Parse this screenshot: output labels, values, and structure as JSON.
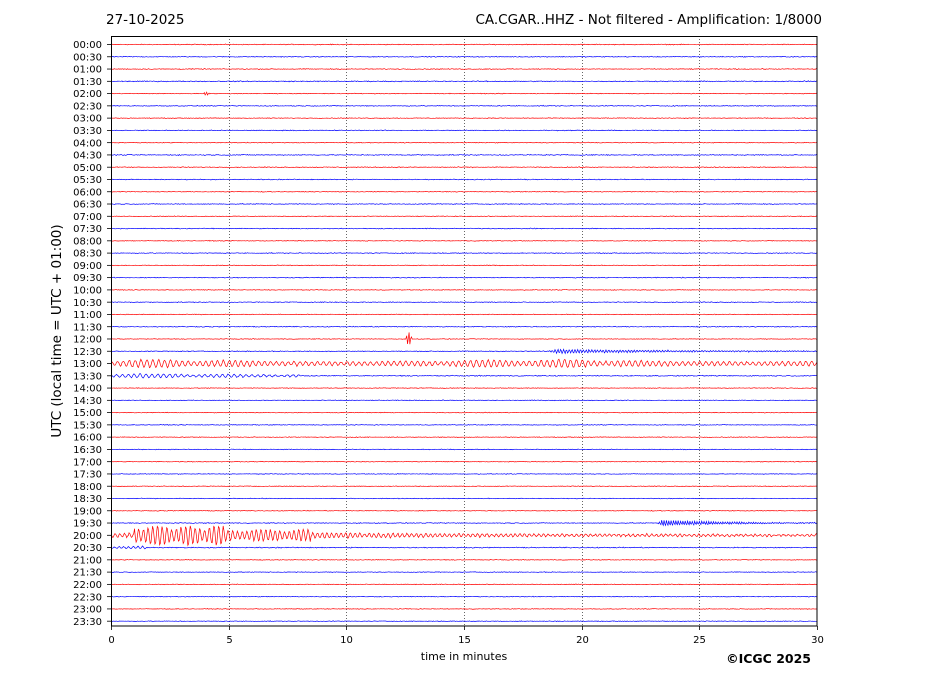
{
  "header": {
    "date": "27-10-2025",
    "title": "CA.CGAR..HHZ - Not filtered - Amplification: 1/8000"
  },
  "footer": {
    "copyright": "©ICGC 2025"
  },
  "chart_data": {
    "type": "line",
    "subtype": "helicorder",
    "title": "CA.CGAR..HHZ - Not filtered - Amplification: 1/8000",
    "xlabel": "time in minutes",
    "ylabel": "UTC (local time = UTC + 01:00)",
    "xlim": [
      0,
      30
    ],
    "xticks": [
      0,
      5,
      10,
      15,
      20,
      25,
      30
    ],
    "grid": "vertical dotted lines at 5-minute intervals",
    "trace_colors": [
      "#ff0000",
      "#0000ff"
    ],
    "rows": [
      {
        "label": "00:00",
        "color": "#ff0000",
        "noise": 0.6,
        "events": []
      },
      {
        "label": "00:30",
        "color": "#0000ff",
        "noise": 0.6,
        "events": []
      },
      {
        "label": "01:00",
        "color": "#ff0000",
        "noise": 0.6,
        "events": []
      },
      {
        "label": "01:30",
        "color": "#0000ff",
        "noise": 0.7,
        "events": []
      },
      {
        "label": "02:00",
        "color": "#ff0000",
        "noise": 0.5,
        "events": [
          {
            "start": 3.9,
            "end": 4.2,
            "amp": 2,
            "period": 0.1,
            "shape": "burst"
          }
        ]
      },
      {
        "label": "02:30",
        "color": "#0000ff",
        "noise": 0.6,
        "events": []
      },
      {
        "label": "03:00",
        "color": "#ff0000",
        "noise": 0.5,
        "events": []
      },
      {
        "label": "03:30",
        "color": "#0000ff",
        "noise": 0.6,
        "events": []
      },
      {
        "label": "04:00",
        "color": "#ff0000",
        "noise": 0.5,
        "events": []
      },
      {
        "label": "04:30",
        "color": "#0000ff",
        "noise": 0.7,
        "events": []
      },
      {
        "label": "05:00",
        "color": "#ff0000",
        "noise": 0.6,
        "events": []
      },
      {
        "label": "05:30",
        "color": "#0000ff",
        "noise": 0.6,
        "events": []
      },
      {
        "label": "06:00",
        "color": "#ff0000",
        "noise": 0.5,
        "events": []
      },
      {
        "label": "06:30",
        "color": "#0000ff",
        "noise": 0.6,
        "events": []
      },
      {
        "label": "07:00",
        "color": "#ff0000",
        "noise": 0.5,
        "events": []
      },
      {
        "label": "07:30",
        "color": "#0000ff",
        "noise": 0.6,
        "events": []
      },
      {
        "label": "08:00",
        "color": "#ff0000",
        "noise": 0.5,
        "events": []
      },
      {
        "label": "08:30",
        "color": "#0000ff",
        "noise": 0.6,
        "events": []
      },
      {
        "label": "09:00",
        "color": "#ff0000",
        "noise": 0.5,
        "events": []
      },
      {
        "label": "09:30",
        "color": "#0000ff",
        "noise": 0.6,
        "events": []
      },
      {
        "label": "10:00",
        "color": "#ff0000",
        "noise": 0.5,
        "events": []
      },
      {
        "label": "10:30",
        "color": "#0000ff",
        "noise": 0.6,
        "events": []
      },
      {
        "label": "11:00",
        "color": "#ff0000",
        "noise": 0.5,
        "events": []
      },
      {
        "label": "11:30",
        "color": "#0000ff",
        "noise": 0.6,
        "events": []
      },
      {
        "label": "12:00",
        "color": "#ff0000",
        "noise": 0.5,
        "events": [
          {
            "start": 12.5,
            "end": 12.8,
            "amp": 8,
            "period": 0.05,
            "shape": "burst"
          }
        ]
      },
      {
        "label": "12:30",
        "color": "#0000ff",
        "noise": 0.6,
        "events": [
          {
            "start": 18.6,
            "end": 30,
            "amp": 2.5,
            "period": 0.12,
            "shape": "decay"
          }
        ]
      },
      {
        "label": "13:00",
        "color": "#ff0000",
        "noise": 0.8,
        "events": [
          {
            "start": 0,
            "end": 30,
            "amp": 4.5,
            "period": 0.25,
            "shape": "wave"
          }
        ]
      },
      {
        "label": "13:30",
        "color": "#0000ff",
        "noise": 0.7,
        "events": [
          {
            "start": 0,
            "end": 8,
            "amp": 2.2,
            "period": 0.25,
            "shape": "wave"
          }
        ]
      },
      {
        "label": "14:00",
        "color": "#ff0000",
        "noise": 0.5,
        "events": []
      },
      {
        "label": "14:30",
        "color": "#0000ff",
        "noise": 0.5,
        "events": []
      },
      {
        "label": "15:00",
        "color": "#ff0000",
        "noise": 0.5,
        "events": []
      },
      {
        "label": "15:30",
        "color": "#0000ff",
        "noise": 0.5,
        "events": []
      },
      {
        "label": "16:00",
        "color": "#ff0000",
        "noise": 0.5,
        "events": []
      },
      {
        "label": "16:30",
        "color": "#0000ff",
        "noise": 0.5,
        "events": []
      },
      {
        "label": "17:00",
        "color": "#ff0000",
        "noise": 0.5,
        "events": []
      },
      {
        "label": "17:30",
        "color": "#0000ff",
        "noise": 0.5,
        "events": []
      },
      {
        "label": "18:00",
        "color": "#ff0000",
        "noise": 0.5,
        "events": []
      },
      {
        "label": "18:30",
        "color": "#0000ff",
        "noise": 0.5,
        "events": []
      },
      {
        "label": "19:00",
        "color": "#ff0000",
        "noise": 0.5,
        "events": []
      },
      {
        "label": "19:30",
        "color": "#0000ff",
        "noise": 0.6,
        "events": [
          {
            "start": 23.2,
            "end": 30,
            "amp": 3.5,
            "period": 0.1,
            "shape": "decay"
          }
        ]
      },
      {
        "label": "20:00",
        "color": "#ff0000",
        "noise": 1.0,
        "events": [
          {
            "start": 0,
            "end": 30,
            "amp": 11,
            "period": 0.2,
            "shape": "quake"
          }
        ]
      },
      {
        "label": "20:30",
        "color": "#0000ff",
        "noise": 0.7,
        "events": [
          {
            "start": 0,
            "end": 1.5,
            "amp": 1.5,
            "period": 0.2,
            "shape": "wave"
          }
        ]
      },
      {
        "label": "21:00",
        "color": "#ff0000",
        "noise": 0.5,
        "events": []
      },
      {
        "label": "21:30",
        "color": "#0000ff",
        "noise": 0.5,
        "events": []
      },
      {
        "label": "22:00",
        "color": "#ff0000",
        "noise": 0.5,
        "events": []
      },
      {
        "label": "22:30",
        "color": "#0000ff",
        "noise": 0.5,
        "events": []
      },
      {
        "label": "23:00",
        "color": "#ff0000",
        "noise": 0.5,
        "events": []
      },
      {
        "label": "23:30",
        "color": "#0000ff",
        "noise": 0.5,
        "events": []
      }
    ]
  }
}
